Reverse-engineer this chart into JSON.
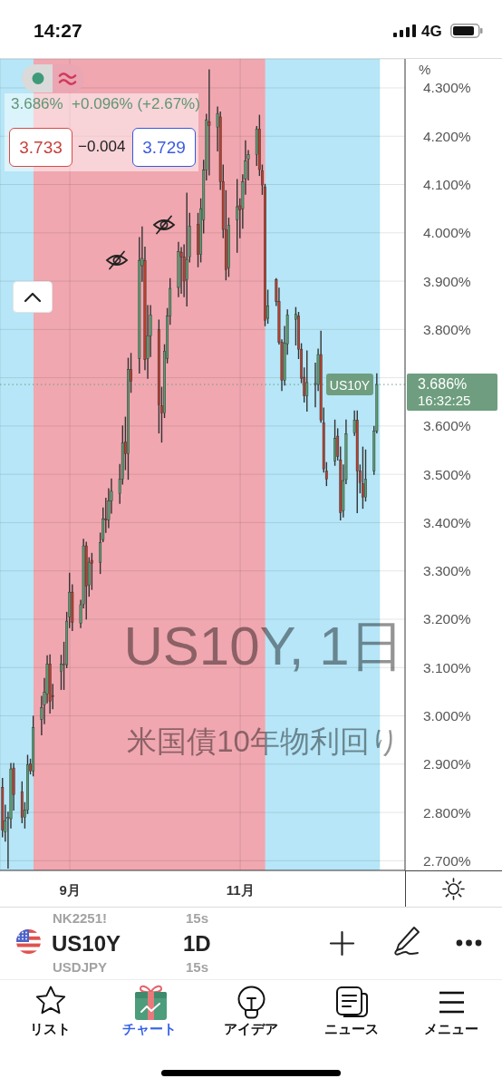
{
  "chart_data": {
    "type": "candlestick",
    "title": "US10Y, 1日",
    "subtitle": "米国債10年物利回り",
    "ylabel": "%",
    "x": [
      "--08-08",
      "--08-09",
      "--08-10",
      "--08-11",
      "--08-12",
      "--08-15",
      "--08-16",
      "--08-17",
      "--08-18",
      "--08-19",
      "--08-22",
      "--08-23",
      "--08-24",
      "--08-25",
      "--08-26",
      "--08-29",
      "--08-30",
      "--08-31",
      "--09-01",
      "--09-02",
      "--09-05",
      "--09-06",
      "--09-07",
      "--09-08",
      "--09-09",
      "--09-12",
      "--09-13",
      "--09-14",
      "--09-15",
      "--09-16",
      "--09-19",
      "--09-20",
      "--09-21",
      "--09-22",
      "--09-23",
      "--09-26",
      "--09-27",
      "--09-28",
      "--09-29",
      "--09-30",
      "--10-03",
      "--10-04",
      "--10-05",
      "--10-06",
      "--10-07",
      "--10-10",
      "--10-11",
      "--10-12",
      "--10-13",
      "--10-14",
      "--10-17",
      "--10-18",
      "--10-19",
      "--10-20",
      "--10-21",
      "--10-24",
      "--10-25",
      "--10-26",
      "--10-27",
      "--10-28",
      "--10-31",
      "--11-01",
      "--11-02",
      "--11-03",
      "--11-04",
      "--11-07",
      "--11-08",
      "--11-09",
      "--11-10",
      "--11-11",
      "--11-14",
      "--11-15",
      "--11-16",
      "--11-17",
      "--11-18",
      "--11-21",
      "--11-22",
      "--11-23",
      "--11-24",
      "--11-25",
      "--11-28",
      "--11-29",
      "--11-30",
      "--12-01",
      "--12-02",
      "--12-05",
      "--12-06",
      "--12-07",
      "--12-08",
      "--12-09",
      "--12-12",
      "--12-13",
      "--12-14",
      "--12-15",
      "--12-16",
      "--12-19",
      "--12-20"
    ],
    "ohlc": [
      [
        2.852,
        2.87,
        2.75,
        2.764
      ],
      [
        2.76,
        2.815,
        2.741,
        2.783
      ],
      [
        2.787,
        2.8,
        2.685,
        2.79
      ],
      [
        2.787,
        2.901,
        2.768,
        2.89
      ],
      [
        2.892,
        2.901,
        2.805,
        2.837
      ],
      [
        2.843,
        2.863,
        2.779,
        2.79
      ],
      [
        2.79,
        2.82,
        2.768,
        2.805
      ],
      [
        2.805,
        2.918,
        2.798,
        2.899
      ],
      [
        2.901,
        2.91,
        2.88,
        2.886
      ],
      [
        2.886,
        2.999,
        2.876,
        2.976
      ],
      [
        2.993,
        3.04,
        2.961,
        3.017
      ],
      [
        3.023,
        3.077,
        2.984,
        3.049
      ],
      [
        3.045,
        3.124,
        3.027,
        3.107
      ],
      [
        3.107,
        3.126,
        3.006,
        3.03
      ],
      [
        3.042,
        3.065,
        3.015,
        3.04
      ],
      [
        3.092,
        3.125,
        3.055,
        3.107
      ],
      [
        3.105,
        3.152,
        3.055,
        3.107
      ],
      [
        3.106,
        3.214,
        3.1,
        3.196
      ],
      [
        3.205,
        3.295,
        3.183,
        3.256
      ],
      [
        3.256,
        3.271,
        3.177,
        3.194
      ],
      [
        3.192,
        3.239,
        3.183,
        3.23
      ],
      [
        3.231,
        3.365,
        3.224,
        3.352
      ],
      [
        3.352,
        3.359,
        3.201,
        3.269
      ],
      [
        3.271,
        3.327,
        3.248,
        3.318
      ],
      [
        3.322,
        3.336,
        3.262,
        3.316
      ],
      [
        3.318,
        3.378,
        3.295,
        3.359
      ],
      [
        3.365,
        3.43,
        3.361,
        3.408
      ],
      [
        3.408,
        3.45,
        3.38,
        3.406
      ],
      [
        3.406,
        3.47,
        3.39,
        3.445
      ],
      [
        3.445,
        3.49,
        3.42,
        3.465
      ],
      [
        3.46,
        3.52,
        3.44,
        3.49
      ],
      [
        3.49,
        3.6,
        3.48,
        3.565
      ],
      [
        3.567,
        3.618,
        3.51,
        3.543
      ],
      [
        3.543,
        3.74,
        3.49,
        3.717
      ],
      [
        3.717,
        3.75,
        3.67,
        3.693
      ],
      [
        3.74,
        3.99,
        3.71,
        3.943
      ],
      [
        3.932,
        4.012,
        3.9,
        3.947
      ],
      [
        3.943,
        3.97,
        3.717,
        3.738
      ],
      [
        3.74,
        3.849,
        3.699,
        3.787
      ],
      [
        3.787,
        3.849,
        3.744,
        3.83
      ],
      [
        3.8,
        3.819,
        3.586,
        3.644
      ],
      [
        3.642,
        3.68,
        3.567,
        3.627
      ],
      [
        3.627,
        3.768,
        3.618,
        3.755
      ],
      [
        3.74,
        3.843,
        3.731,
        3.828
      ],
      [
        3.828,
        3.905,
        3.811,
        3.885
      ],
      [
        3.887,
        3.98,
        3.868,
        3.961
      ],
      [
        3.96,
        3.969,
        3.875,
        3.95
      ],
      [
        3.95,
        3.975,
        3.868,
        3.9
      ],
      [
        3.903,
        4.082,
        3.849,
        3.945
      ],
      [
        3.95,
        4.04,
        3.94,
        4.014
      ],
      [
        4.018,
        4.04,
        3.93,
        3.955
      ],
      [
        3.955,
        4.07,
        3.94,
        4.05
      ],
      [
        4.027,
        4.15,
        4.0,
        4.13
      ],
      [
        4.13,
        4.245,
        4.11,
        4.234
      ],
      [
        4.23,
        4.337,
        4.12,
        4.222
      ],
      [
        4.219,
        4.26,
        4.17,
        4.247
      ],
      [
        4.24,
        4.25,
        4.09,
        4.106
      ],
      [
        4.106,
        4.14,
        3.99,
        4.007
      ],
      [
        4.007,
        4.087,
        3.903,
        3.924
      ],
      [
        3.928,
        4.03,
        3.91,
        4.016
      ],
      [
        4.027,
        4.11,
        3.96,
        4.054
      ],
      [
        4.056,
        4.07,
        3.99,
        4.048
      ],
      [
        4.05,
        4.12,
        4.01,
        4.106
      ],
      [
        4.112,
        4.19,
        4.08,
        4.149
      ],
      [
        4.153,
        4.17,
        4.11,
        4.162
      ],
      [
        4.162,
        4.22,
        4.14,
        4.215
      ],
      [
        4.215,
        4.243,
        4.119,
        4.131
      ],
      [
        4.129,
        4.14,
        4.08,
        4.099
      ],
      [
        4.095,
        4.1,
        3.808,
        3.819
      ],
      [
        3.823,
        3.881,
        3.813,
        3.849
      ],
      [
        3.903,
        3.905,
        3.85,
        3.858
      ],
      [
        3.858,
        3.885,
        3.77,
        3.774
      ],
      [
        3.774,
        3.778,
        3.674,
        3.695
      ],
      [
        3.695,
        3.806,
        3.685,
        3.772
      ],
      [
        3.77,
        3.84,
        3.749,
        3.83
      ],
      [
        3.821,
        3.845,
        3.768,
        3.832
      ],
      [
        3.828,
        3.835,
        3.74,
        3.759
      ],
      [
        3.759,
        3.77,
        3.69,
        3.699
      ],
      [
        3.701,
        3.72,
        3.65,
        3.663
      ],
      [
        3.663,
        3.755,
        3.631,
        3.69
      ],
      [
        3.686,
        3.73,
        3.64,
        3.688
      ],
      [
        3.686,
        3.759,
        3.674,
        3.748
      ],
      [
        3.748,
        3.796,
        3.608,
        3.612
      ],
      [
        3.607,
        3.637,
        3.505,
        3.511
      ],
      [
        3.507,
        3.524,
        3.477,
        3.49
      ],
      [
        3.528,
        3.612,
        3.519,
        3.575
      ],
      [
        3.579,
        3.594,
        3.53,
        3.537
      ],
      [
        3.53,
        3.556,
        3.406,
        3.421
      ],
      [
        3.425,
        3.519,
        3.412,
        3.487
      ],
      [
        3.489,
        3.612,
        3.481,
        3.584
      ],
      [
        3.586,
        3.631,
        3.581,
        3.612
      ],
      [
        3.612,
        3.631,
        3.421,
        3.507
      ],
      [
        3.507,
        3.519,
        3.462,
        3.483
      ],
      [
        3.481,
        3.556,
        3.43,
        3.453
      ],
      [
        3.453,
        3.55,
        3.445,
        3.49
      ],
      [
        3.507,
        3.599,
        3.5,
        3.59
      ],
      [
        3.59,
        3.708,
        3.586,
        3.686
      ]
    ],
    "colors": [
      "#b8402f",
      "#5a9c70",
      "#5a9c70",
      "#5a9c70",
      "#b8402f",
      "#b8402f",
      "#5a9c70",
      "#5a9c70",
      "#b8402f",
      "#5a9c70",
      "#5a9c70",
      "#5a9c70",
      "#5a9c70",
      "#b8402f",
      "#b8402f",
      "#5a9c70",
      "#5a9c70",
      "#5a9c70",
      "#5a9c70",
      "#b8402f",
      "#5a9c70",
      "#5a9c70",
      "#b8402f",
      "#5a9c70",
      "#b8402f",
      "#5a9c70",
      "#5a9c70",
      "#b8402f",
      "#5a9c70",
      "#5a9c70",
      "#5a9c70",
      "#5a9c70",
      "#b8402f",
      "#5a9c70",
      "#b8402f",
      "#5a9c70",
      "#5a9c70",
      "#b8402f",
      "#5a9c70",
      "#5a9c70",
      "#b8402f",
      "#b8402f",
      "#5a9c70",
      "#5a9c70",
      "#5a9c70",
      "#5a9c70",
      "#b8402f",
      "#b8402f",
      "#5a9c70",
      "#5a9c70",
      "#b8402f",
      "#5a9c70",
      "#5a9c70",
      "#5a9c70",
      "#b8402f",
      "#5a9c70",
      "#b8402f",
      "#b8402f",
      "#b8402f",
      "#5a9c70",
      "#5a9c70",
      "#b8402f",
      "#5a9c70",
      "#5a9c70",
      "#5a9c70",
      "#5a9c70",
      "#b8402f",
      "#b8402f",
      "#b8402f",
      "#5a9c70",
      "#b8402f",
      "#b8402f",
      "#b8402f",
      "#5a9c70",
      "#5a9c70",
      "#5a9c70",
      "#b8402f",
      "#b8402f",
      "#b8402f",
      "#5a9c70",
      "#5a9c70",
      "#5a9c70",
      "#b8402f",
      "#b8402f",
      "#b8402f",
      "#5a9c70",
      "#b8402f",
      "#b8402f",
      "#5a9c70",
      "#5a9c70",
      "#5a9c70",
      "#b8402f",
      "#b8402f",
      "#b8402f",
      "#5a9c70",
      "#5a9c70",
      "#5a9c70"
    ],
    "xlim": [
      "--08-07",
      "--12-30"
    ],
    "xticks": [
      {
        "value": "--09-01",
        "label": "9月"
      },
      {
        "value": "--11-01",
        "label": "11月"
      }
    ],
    "ylim": [
      2.68,
      4.36
    ],
    "yticks": [
      {
        "value": 2.7,
        "label": "2.700%"
      },
      {
        "value": 2.8,
        "label": "2.800%"
      },
      {
        "value": 2.9,
        "label": "2.900%"
      },
      {
        "value": 3.0,
        "label": "3.000%"
      },
      {
        "value": 3.1,
        "label": "3.100%"
      },
      {
        "value": 3.2,
        "label": "3.200%"
      },
      {
        "value": 3.3,
        "label": "3.300%"
      },
      {
        "value": 3.4,
        "label": "3.400%"
      },
      {
        "value": 3.5,
        "label": "3.500%"
      },
      {
        "value": 3.6,
        "label": "3.600%"
      },
      {
        "value": 3.7,
        "label": null
      },
      {
        "value": 3.8,
        "label": "3.800%"
      },
      {
        "value": 3.9,
        "label": "3.900%"
      },
      {
        "value": 4.0,
        "label": "4.000%"
      },
      {
        "value": 4.1,
        "label": "4.100%"
      },
      {
        "value": 4.2,
        "label": "4.200%"
      },
      {
        "value": 4.3,
        "label": "4.300%"
      }
    ],
    "grid": true,
    "bands": [
      {
        "axis": "x",
        "from": "--08-07",
        "to": "--08-19",
        "color": "#b6e6f7"
      },
      {
        "axis": "x",
        "from": "--08-19",
        "to": "--11-10",
        "color": "#f0a7b0"
      },
      {
        "axis": "x",
        "from": "--11-10",
        "to": "--12-21",
        "color": "#b6e6f7"
      }
    ],
    "ref_lines": [
      {
        "axis": "y",
        "value": 3.686,
        "label": "US10Y",
        "color": "#6e9e7f",
        "line_style": "dotted"
      }
    ],
    "annotations": [
      "3.686%  +0.096% (+2.67%)",
      "3.733",
      "−0.004",
      "3.729",
      "3.686%",
      "16:32:25",
      "14:27",
      "4G",
      "US10Y",
      "1D",
      "NK2251!",
      "15s",
      "USDJPY",
      "15s",
      "リスト",
      "チャート",
      "アイデア",
      "ニュース",
      "メニュー"
    ]
  }
}
